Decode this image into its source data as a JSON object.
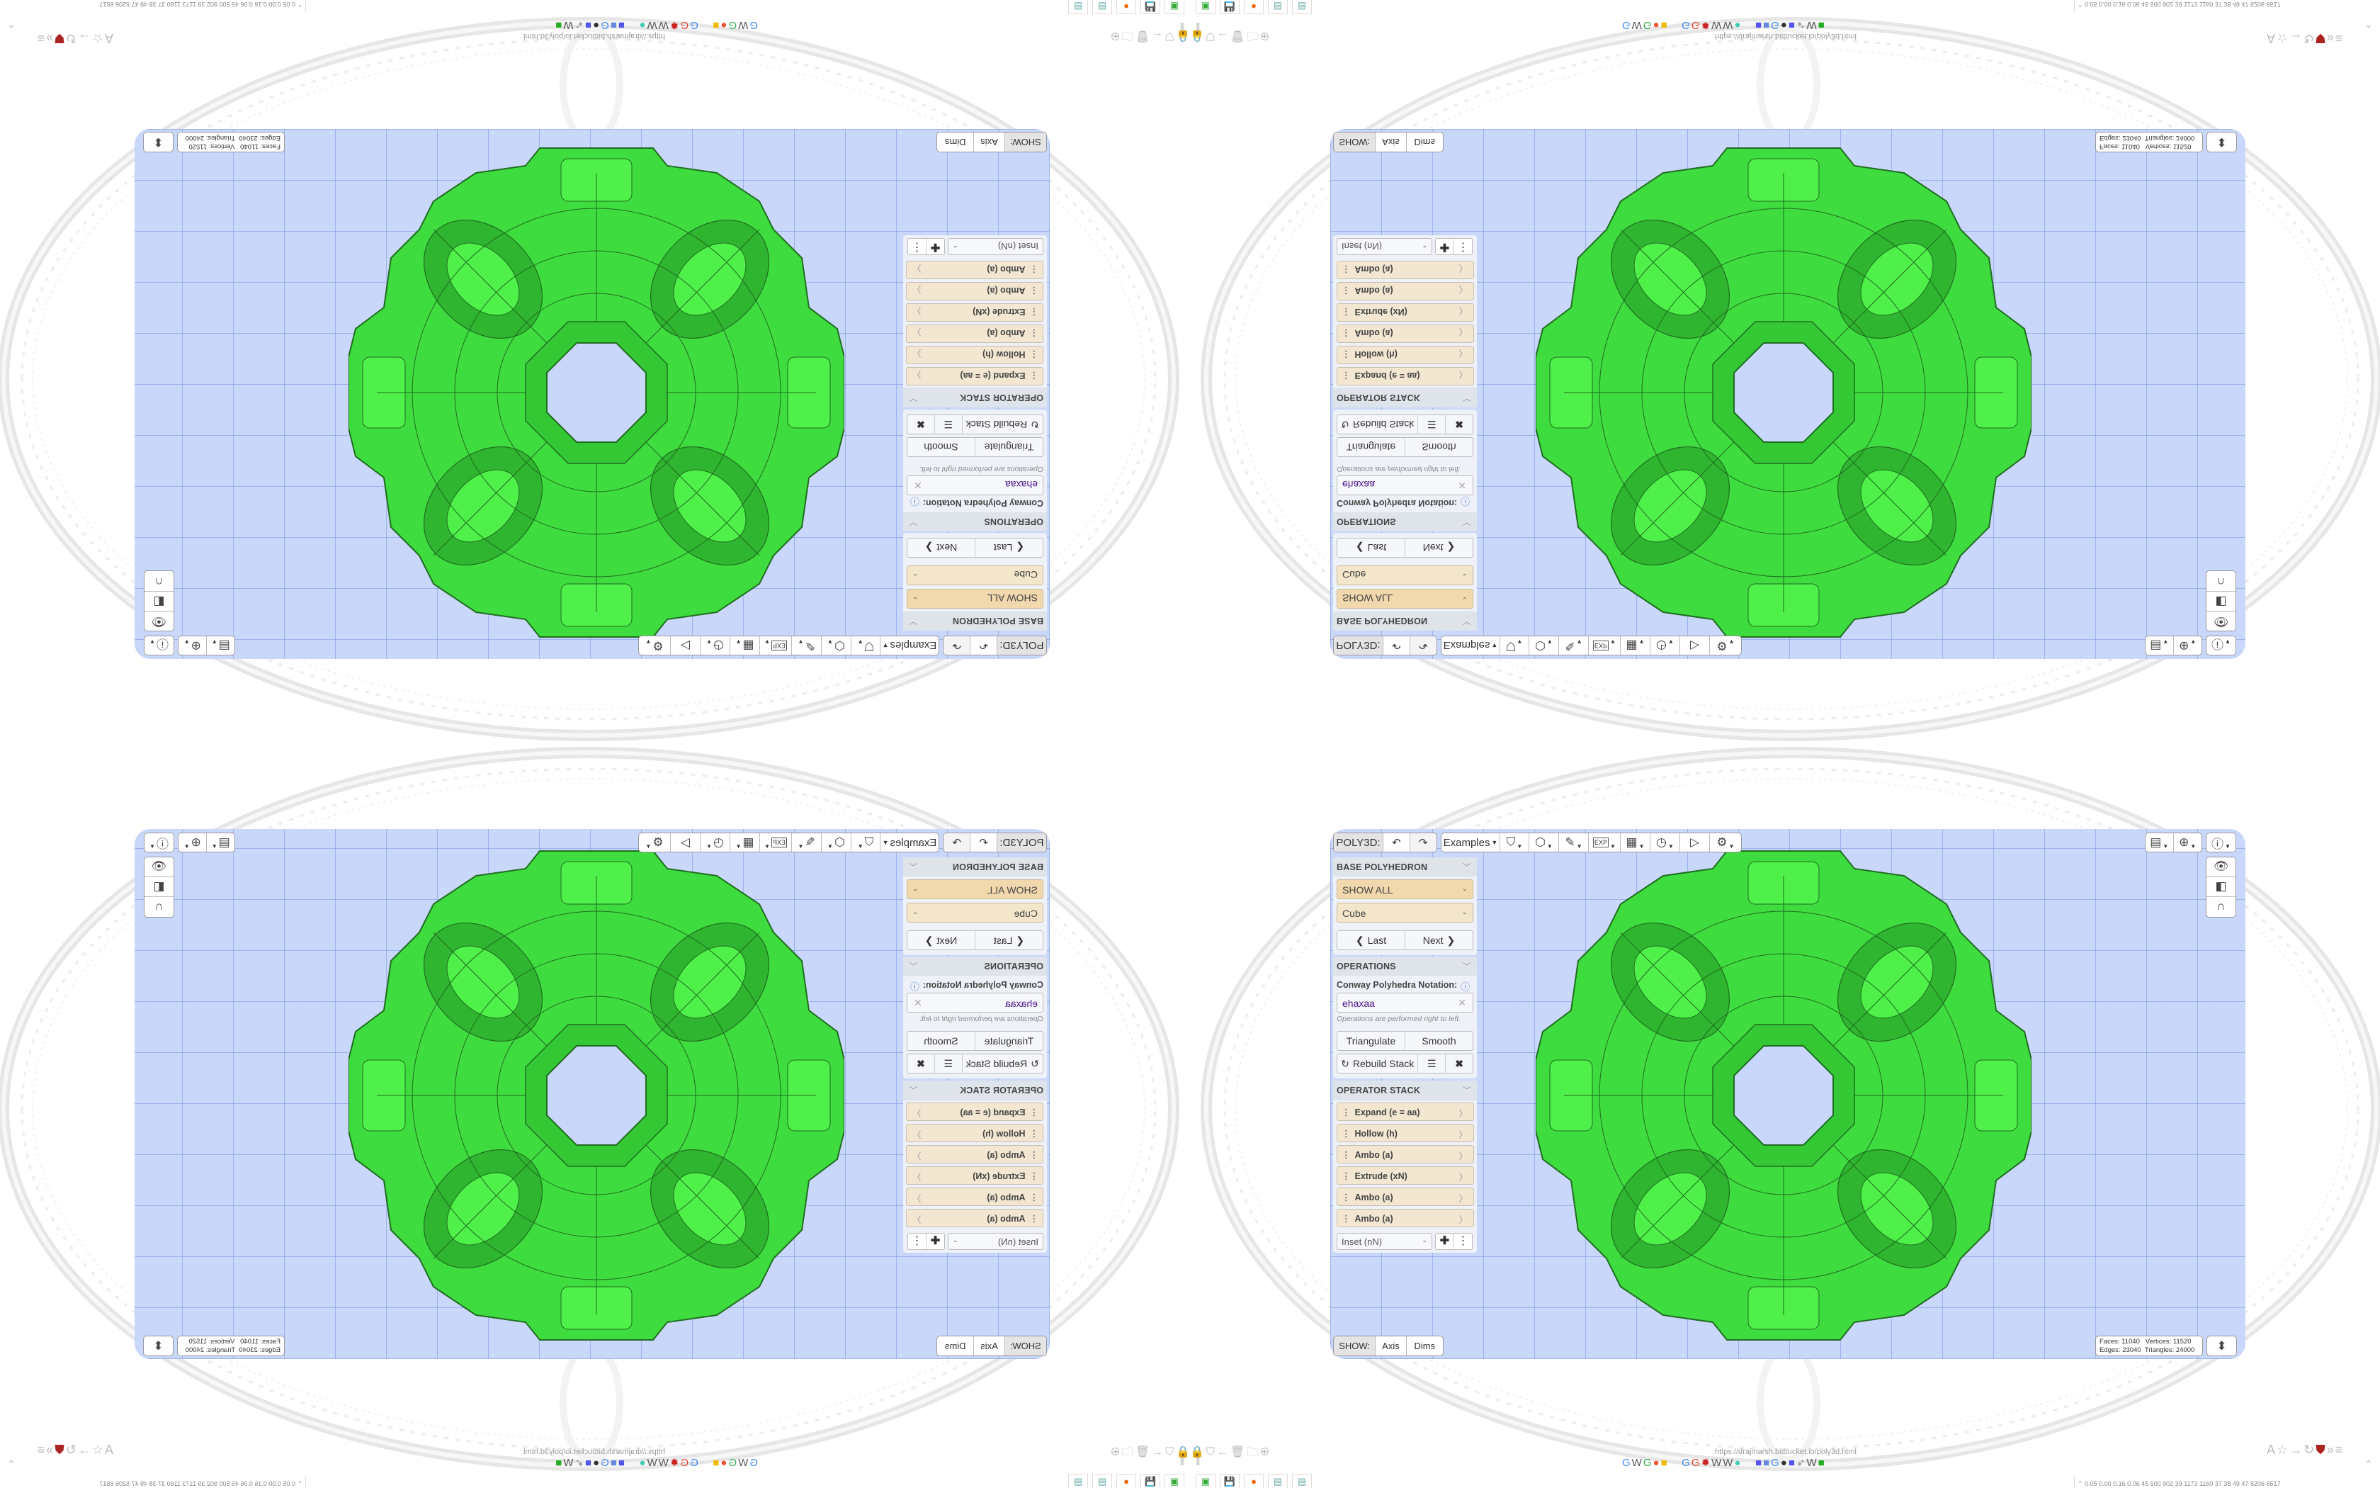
{
  "app": {
    "title": "POLY3D:"
  },
  "toolbar": {
    "undo_icon": "undo-icon",
    "redo_icon": "redo-icon",
    "examples_label": "Examples",
    "tools": [
      "paint-bucket-icon",
      "cube-play-icon",
      "pencil-edit-icon",
      "export-icon",
      "calendar-icon",
      "clock-icon",
      "play-icon",
      "gear-icon"
    ],
    "export_label": "EXP",
    "right_tools": [
      "calendar-clock-icon",
      "globe-icon",
      "info-icon"
    ],
    "side_tools": [
      "eye-icon",
      "toggle-switch-icon",
      "magnet-icon"
    ]
  },
  "panel": {
    "base": {
      "header": "BASE POLYHEDRON",
      "filter": "SHOW ALL",
      "shape": "Cube",
      "last": "Last",
      "next": "Next"
    },
    "operations": {
      "header": "OPERATIONS",
      "notation_label": "Conway Polyhedra Notation:",
      "notation_value": "ehaxaa",
      "note": "Operations are performed right to left.",
      "triangulate": "Triangulate",
      "smooth": "Smooth",
      "rebuild": "Rebuild Stack"
    },
    "stack": {
      "header": "OPERATOR STACK",
      "items": [
        "Expand (e = aa)",
        "Hollow (h)",
        "Ambo (a)",
        "Extrude (xN)",
        "Ambo (a)",
        "Ambo (a)"
      ],
      "add_select": "Inset (nN)"
    }
  },
  "show": {
    "label": "SHOW:",
    "axis": "Axis",
    "dims": "Dims"
  },
  "stats": {
    "faces": "Faces: 11040",
    "vertices": "Vertices: 11520",
    "edges": "Edges: 23040",
    "triangles": "Triangles: 24000"
  },
  "browser": {
    "url": "https://drajmarsh.bitbucket.io/poly3d.html",
    "perf": "0.05 0.00 0.16 0.06  45  500  902  39  1173 1160  37  38  49  47  5206 6517"
  },
  "colors": {
    "viewport": "#c9d7fb",
    "polyhedron": "#3fdc3f",
    "select": "#f2d9ad",
    "stack_item": "#f3e7d2"
  }
}
